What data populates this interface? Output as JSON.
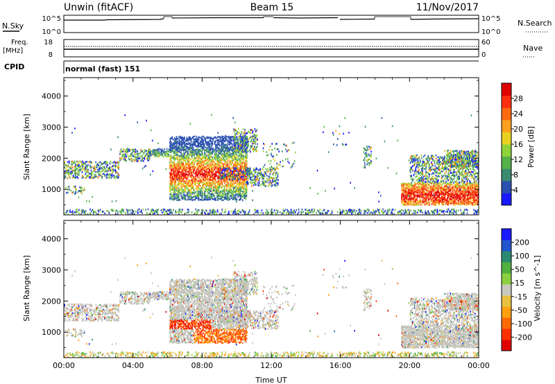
{
  "header": {
    "station": "Unwin (fitACF)",
    "beam": "Beam 15",
    "date": "11/Nov/2017"
  },
  "panels": {
    "nsky_label": "N.Sky",
    "nsky_tick_top": "10^5",
    "nsky_tick_bot": "10^0",
    "nsearch_label": "N.Search",
    "freq_label_1": "Freq.",
    "freq_label_2": "[MHz]",
    "freq_tick_top": "18",
    "freq_tick_bot": "8",
    "nave_tick_top": "60",
    "nave_tick_bot": "0",
    "nave_label": "Nave",
    "cpid_label": "CPID",
    "cpid_value": "normal (fast) 151"
  },
  "colors": {
    "power": [
      "#1a1aff",
      "#2a50b0",
      "#3a8a70",
      "#55b04a",
      "#8fd23a",
      "#e8d020",
      "#ffa020",
      "#ff6a10",
      "#ff3010",
      "#e00000"
    ],
    "velocity": [
      "#1a1aff",
      "#2255cc",
      "#2a8a70",
      "#50b040",
      "#8ccf40",
      "#c8c8c0",
      "#e8c040",
      "#ffa010",
      "#ff6a00",
      "#ff3000",
      "#e00000"
    ],
    "ground_scatter": "#c0c0b8"
  },
  "chart_data": [
    {
      "type": "heatmap",
      "quantity": "power",
      "xlabel": "Time UT",
      "ylabel": "Slant Range [km]",
      "x_ticks": [
        "00:00",
        "04:00",
        "08:00",
        "12:00",
        "16:00",
        "20:00",
        "00:00"
      ],
      "y_ticks": [
        1000,
        2000,
        3000,
        4000
      ],
      "ylim": [
        180,
        4590
      ],
      "colorbar_label": "Power [dB]",
      "colorbar_ticks": [
        4,
        8,
        12,
        16,
        20,
        24,
        28
      ],
      "colorbar_range": [
        0,
        32
      ]
    },
    {
      "type": "heatmap",
      "quantity": "velocity",
      "xlabel": "Time UT",
      "ylabel": "Slant Range [km]",
      "x_ticks": [
        "00:00",
        "04:00",
        "08:00",
        "12:00",
        "16:00",
        "20:00",
        "00:00"
      ],
      "y_ticks": [
        1000,
        2000,
        3000,
        4000
      ],
      "ylim": [
        180,
        4590
      ],
      "colorbar_label": "Velocity [m s^-1]",
      "colorbar_ticks": [
        "200",
        "100",
        "50",
        "15",
        "-15",
        "-50",
        "-100",
        "-200"
      ]
    }
  ]
}
